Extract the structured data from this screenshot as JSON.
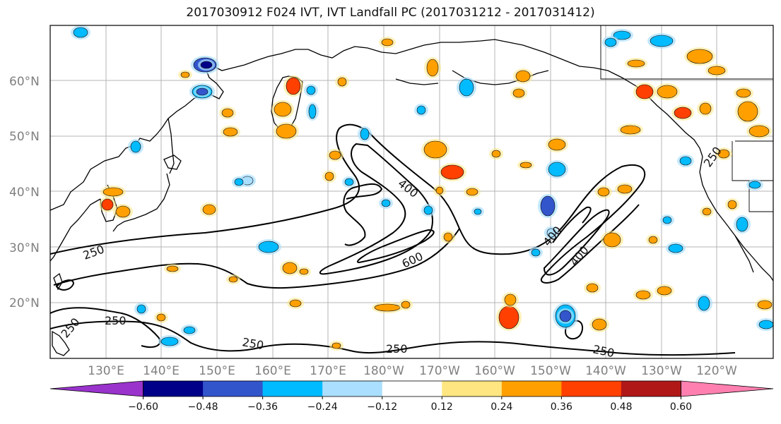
{
  "title": "2017030912 F024 IVT, IVT Landfall PC (2017031212 - 2017031412)",
  "map": {
    "lat_labels": [
      "60°N",
      "50°N",
      "40°N",
      "30°N",
      "20°N"
    ],
    "lon_labels": [
      "130°E",
      "140°E",
      "150°E",
      "160°E",
      "170°E",
      "180°W",
      "170°W",
      "160°W",
      "150°W",
      "140°W",
      "130°W",
      "120°W"
    ],
    "contour_labels": [
      "400",
      "600",
      "250",
      "250",
      "250",
      "400",
      "400",
      "250",
      "250",
      "250",
      "250"
    ],
    "grid": true
  },
  "colorbar": {
    "ticks": [
      "−0.60",
      "−0.48",
      "−0.36",
      "−0.24",
      "−0.12",
      "0.12",
      "0.24",
      "0.36",
      "0.48",
      "0.60"
    ],
    "colors": [
      "#9933cc",
      "#000088",
      "#3355cc",
      "#00bbff",
      "#aadfff",
      "#ffffff",
      "#ffe680",
      "#ffa000",
      "#ff4000",
      "#b01818",
      "#ff80b0"
    ],
    "extend": "both"
  }
}
